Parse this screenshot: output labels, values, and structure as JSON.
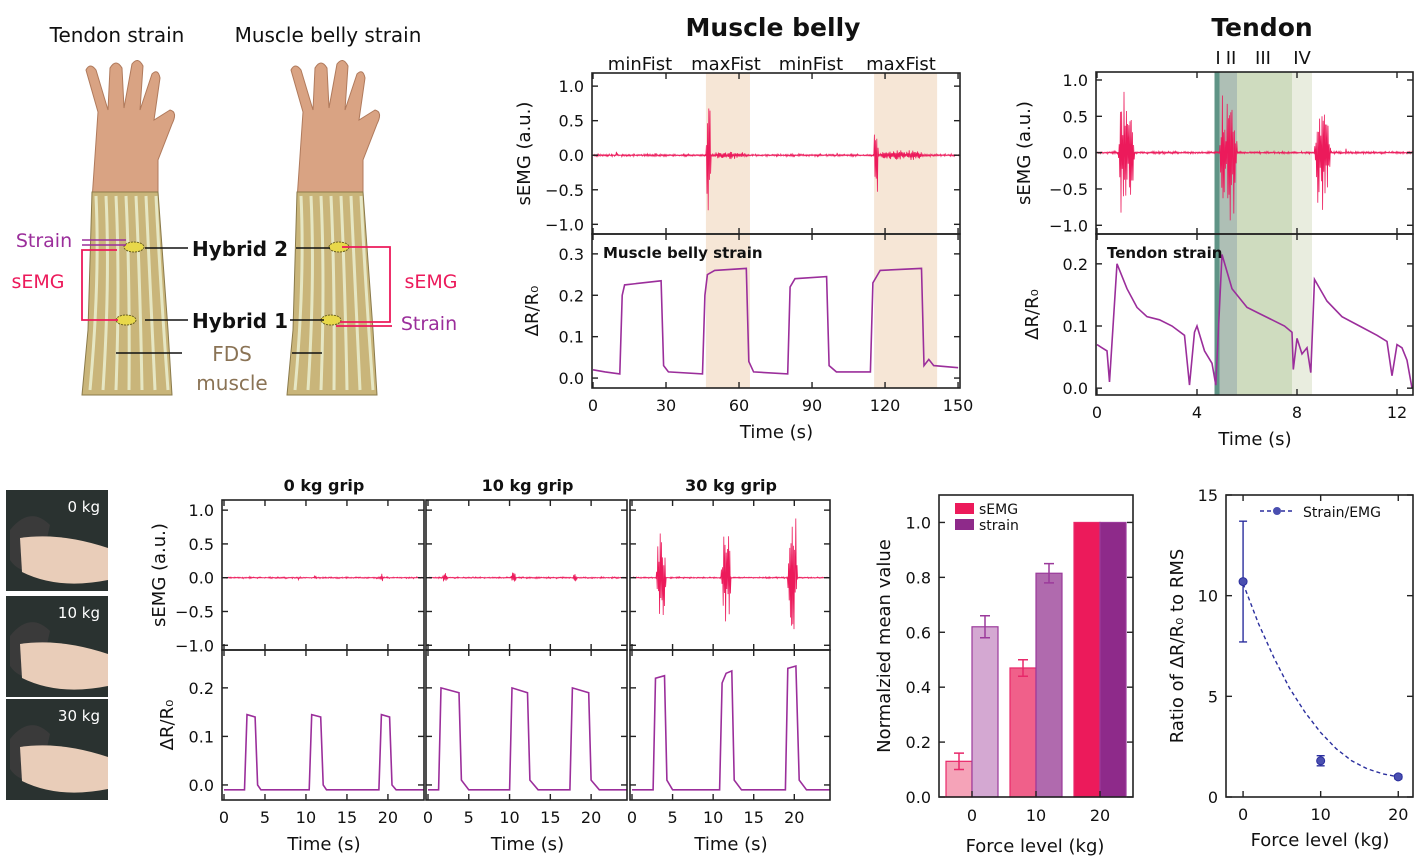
{
  "panel_a": {
    "tendon_title": "Tendon strain",
    "belly_title": "Muscle belly strain",
    "strain_left": "Strain",
    "semg_left": "sEMG",
    "hybrid2": "Hybrid 2",
    "hybrid1": "Hybrid 1",
    "fds_line1": "FDS",
    "fds_line2": "muscle",
    "semg_right": "sEMG",
    "strain_right": "Strain"
  },
  "photos": [
    "0 kg",
    "10 kg",
    "30 kg"
  ],
  "colors": {
    "emg": "#ec1a5b",
    "strain": "#9b2e9b",
    "fit": "#2b2f9e",
    "shade_belly": "#f6e6d6"
  },
  "chart_data": [
    {
      "id": "muscle_belly",
      "type": "line",
      "title": "Muscle belly",
      "phase_labels": [
        "minFist",
        "maxFist",
        "minFist",
        "maxFist"
      ],
      "xlabel": "Time (s)",
      "xlim": [
        0,
        150
      ],
      "xticks": [
        0,
        30,
        60,
        90,
        120,
        150
      ],
      "shaded": [
        [
          46.4,
          64.5
        ],
        [
          115.5,
          141.4
        ]
      ],
      "top": {
        "ylabel": "sEMG (a.u.)",
        "ylim": [
          -1.0,
          1.0
        ],
        "yticks": [
          -1.0,
          -0.5,
          0.0,
          0.5,
          1.0
        ],
        "baseline_noise": 0.015,
        "bursts": [
          [
            46.5,
            48.5,
            1.0
          ],
          [
            48.5,
            64,
            0.06
          ],
          [
            115.5,
            117.2,
            1.0
          ],
          [
            117.2,
            137,
            0.08
          ]
        ]
      },
      "bottom": {
        "ylabel": "ΔR/R₀",
        "label": "Muscle belly strain",
        "ylim": [
          0,
          0.3
        ],
        "yticks": [
          0.0,
          0.1,
          0.2,
          0.3
        ],
        "points": [
          [
            0,
            0.02
          ],
          [
            5,
            0.015
          ],
          [
            11,
            0.01
          ],
          [
            12,
            0.2
          ],
          [
            13,
            0.225
          ],
          [
            28,
            0.235
          ],
          [
            29,
            0.03
          ],
          [
            31,
            0.015
          ],
          [
            45,
            0.01
          ],
          [
            46,
            0.2
          ],
          [
            47,
            0.25
          ],
          [
            50,
            0.26
          ],
          [
            63,
            0.265
          ],
          [
            64,
            0.04
          ],
          [
            66,
            0.015
          ],
          [
            80,
            0.01
          ],
          [
            81,
            0.22
          ],
          [
            83,
            0.24
          ],
          [
            96,
            0.245
          ],
          [
            97,
            0.03
          ],
          [
            100,
            0.015
          ],
          [
            114,
            0.015
          ],
          [
            115,
            0.23
          ],
          [
            118,
            0.26
          ],
          [
            135,
            0.265
          ],
          [
            136,
            0.03
          ],
          [
            138,
            0.045
          ],
          [
            140,
            0.03
          ],
          [
            150,
            0.025
          ]
        ]
      }
    },
    {
      "id": "tendon",
      "type": "line",
      "title": "Tendon",
      "phase_labels": [
        "I",
        "II",
        "III",
        "IV"
      ],
      "xlabel": "Time (s)",
      "xlim": [
        0,
        12.6
      ],
      "xticks": [
        0,
        4,
        8,
        12
      ],
      "shaded": [
        [
          4.7,
          4.9,
          "#5f9486"
        ],
        [
          4.9,
          5.6,
          "#aebfb5"
        ],
        [
          5.6,
          7.8,
          "#cfdcbf"
        ],
        [
          7.8,
          8.6,
          "#e9eddf"
        ]
      ],
      "top": {
        "ylabel": "sEMG (a.u.)",
        "ylim": [
          -1.0,
          1.0
        ],
        "yticks": [
          -1.0,
          -0.5,
          0.0,
          0.5,
          1.0
        ],
        "baseline_noise": 0.015,
        "bursts": [
          [
            0.85,
            1.5,
            1.0
          ],
          [
            4.9,
            5.6,
            1.0
          ],
          [
            8.7,
            9.35,
            1.0
          ]
        ]
      },
      "bottom": {
        "ylabel": "ΔR/R₀",
        "label": "Tendon strain",
        "ylim": [
          0,
          0.2
        ],
        "yticks": [
          0.0,
          0.1,
          0.2
        ],
        "points": [
          [
            0,
            0.07
          ],
          [
            0.2,
            0.065
          ],
          [
            0.4,
            0.06
          ],
          [
            0.5,
            0.01
          ],
          [
            0.8,
            0.2
          ],
          [
            1.2,
            0.16
          ],
          [
            1.6,
            0.13
          ],
          [
            2.0,
            0.115
          ],
          [
            2.5,
            0.11
          ],
          [
            3.0,
            0.1
          ],
          [
            3.5,
            0.085
          ],
          [
            3.7,
            0.005
          ],
          [
            3.9,
            0.09
          ],
          [
            4.0,
            0.1
          ],
          [
            4.3,
            0.06
          ],
          [
            4.6,
            0.04
          ],
          [
            4.75,
            0.005
          ],
          [
            5.0,
            0.215
          ],
          [
            5.4,
            0.16
          ],
          [
            6.0,
            0.13
          ],
          [
            6.5,
            0.12
          ],
          [
            7.0,
            0.11
          ],
          [
            7.5,
            0.1
          ],
          [
            7.8,
            0.09
          ],
          [
            7.85,
            0.03
          ],
          [
            8.0,
            0.08
          ],
          [
            8.2,
            0.055
          ],
          [
            8.4,
            0.065
          ],
          [
            8.55,
            0.025
          ],
          [
            8.7,
            0.175
          ],
          [
            9.2,
            0.14
          ],
          [
            9.8,
            0.115
          ],
          [
            10.5,
            0.1
          ],
          [
            11.2,
            0.085
          ],
          [
            11.6,
            0.075
          ],
          [
            11.8,
            0.02
          ],
          [
            12.0,
            0.07
          ],
          [
            12.2,
            0.065
          ],
          [
            12.4,
            0.045
          ],
          [
            12.6,
            0.0
          ]
        ]
      }
    },
    {
      "id": "grip_0",
      "type": "line",
      "title": "0 kg grip",
      "xlabel": "Time (s)",
      "xlim": [
        0,
        24
      ],
      "xticks": [
        0,
        5,
        10,
        15,
        20
      ],
      "top": {
        "ylabel": "sEMG (a.u.)",
        "ylim": [
          -1.0,
          1.0
        ],
        "yticks": [
          -1.0,
          -0.5,
          0.0,
          0.5,
          1.0
        ],
        "baseline_noise": 0.01,
        "bursts": [
          [
            3,
            3.3,
            0.03
          ],
          [
            11,
            11.3,
            0.03
          ],
          [
            19,
            19.4,
            0.08
          ]
        ]
      },
      "bottom": {
        "ylabel": "ΔR/R₀",
        "ylim": [
          0,
          0.2
        ],
        "yticks": [
          0.0,
          0.1,
          0.2
        ],
        "points": [
          [
            0,
            -0.01
          ],
          [
            2.5,
            -0.01
          ],
          [
            2.8,
            0.145
          ],
          [
            3.8,
            0.14
          ],
          [
            4.1,
            0.0
          ],
          [
            4.5,
            -0.01
          ],
          [
            10.4,
            -0.01
          ],
          [
            10.7,
            0.145
          ],
          [
            11.8,
            0.14
          ],
          [
            12.1,
            0.0
          ],
          [
            12.5,
            -0.01
          ],
          [
            18.9,
            -0.01
          ],
          [
            19.2,
            0.145
          ],
          [
            20.2,
            0.14
          ],
          [
            20.5,
            0.0
          ],
          [
            21,
            -0.01
          ],
          [
            24.4,
            -0.01
          ]
        ]
      }
    },
    {
      "id": "grip_10",
      "type": "line",
      "title": "10 kg grip",
      "xlabel": "Time (s)",
      "xlim": [
        0,
        24
      ],
      "xticks": [
        0,
        5,
        10,
        15,
        20
      ],
      "top": {
        "ylim": [
          -1.0,
          1.0
        ],
        "baseline_noise": 0.01,
        "bursts": [
          [
            1.8,
            2.4,
            0.08
          ],
          [
            10.2,
            10.8,
            0.15
          ],
          [
            17.8,
            18.3,
            0.08
          ]
        ]
      },
      "bottom": {
        "ylim": [
          0,
          0.2
        ],
        "points": [
          [
            0,
            -0.01
          ],
          [
            1.3,
            -0.01
          ],
          [
            1.6,
            0.2
          ],
          [
            3.8,
            0.19
          ],
          [
            4.1,
            0.01
          ],
          [
            5,
            -0.01
          ],
          [
            10.0,
            -0.01
          ],
          [
            10.3,
            0.2
          ],
          [
            12.2,
            0.19
          ],
          [
            12.5,
            0.01
          ],
          [
            13.5,
            -0.01
          ],
          [
            17.4,
            -0.01
          ],
          [
            17.7,
            0.2
          ],
          [
            19.7,
            0.19
          ],
          [
            20,
            0.01
          ],
          [
            21,
            -0.01
          ],
          [
            24.4,
            -0.01
          ]
        ]
      }
    },
    {
      "id": "grip_30",
      "type": "line",
      "title": "30 kg grip",
      "xlabel": "Time (s)",
      "xlim": [
        0,
        24
      ],
      "xticks": [
        0,
        5,
        10,
        15,
        20
      ],
      "top": {
        "ylim": [
          -1.0,
          1.0
        ],
        "baseline_noise": 0.01,
        "bursts": [
          [
            3,
            4.2,
            0.8
          ],
          [
            11,
            12.2,
            0.8
          ],
          [
            19.2,
            20.4,
            1.0
          ]
        ]
      },
      "bottom": {
        "ylim": [
          0,
          0.2
        ],
        "points": [
          [
            0,
            -0.01
          ],
          [
            2.6,
            -0.01
          ],
          [
            2.9,
            0.22
          ],
          [
            4.0,
            0.225
          ],
          [
            4.3,
            0.01
          ],
          [
            5,
            -0.01
          ],
          [
            10.8,
            -0.01
          ],
          [
            11.1,
            0.21
          ],
          [
            11.6,
            0.23
          ],
          [
            12.3,
            0.235
          ],
          [
            12.6,
            0.01
          ],
          [
            13.5,
            -0.01
          ],
          [
            18.9,
            -0.01
          ],
          [
            19.2,
            0.24
          ],
          [
            20.2,
            0.245
          ],
          [
            20.6,
            0.01
          ],
          [
            21.5,
            -0.01
          ],
          [
            24.4,
            -0.01
          ]
        ]
      }
    },
    {
      "id": "normalized_bar",
      "type": "bar",
      "xlabel": "Force level (kg)",
      "ylabel": "Normalzied mean value",
      "categories": [
        "0",
        "10",
        "20"
      ],
      "ylim": [
        0,
        1.1
      ],
      "yticks": [
        0.0,
        0.2,
        0.4,
        0.6,
        0.8,
        1.0
      ],
      "legend": "top-left",
      "series": [
        {
          "name": "sEMG",
          "values": [
            0.13,
            0.47,
            1.0
          ],
          "errors": [
            0.03,
            0.03,
            0
          ],
          "fills": [
            "#f5a3b8",
            "#f0608a",
            "#ec1a5b"
          ],
          "edge": "#e8286a"
        },
        {
          "name": "strain",
          "values": [
            0.62,
            0.815,
            1.0
          ],
          "errors": [
            0.04,
            0.035,
            0
          ],
          "fills": [
            "#d4a8d2",
            "#b06aae",
            "#8e2a8a"
          ],
          "edge": "#9b3a9b"
        }
      ]
    },
    {
      "id": "ratio",
      "type": "scatter",
      "xlabel": "Force level (kg)",
      "ylabel": "Ratio of ΔR/R₀ to RMS",
      "xlim": [
        -5,
        24
      ],
      "xticks": [
        0,
        10,
        20
      ],
      "ylim": [
        0,
        15
      ],
      "yticks": [
        0,
        5,
        10,
        15
      ],
      "legend": "top-right",
      "series": [
        {
          "name": "Strain/EMG",
          "x": [
            0,
            10,
            20
          ],
          "y": [
            10.7,
            1.8,
            1.0
          ],
          "errors": [
            3.0,
            0.25,
            0.1
          ]
        }
      ],
      "fit": {
        "x": [
          0,
          2,
          4,
          6,
          8,
          10,
          12,
          14,
          16,
          18,
          20
        ],
        "y": [
          10.6,
          8.6,
          6.9,
          5.4,
          4.2,
          3.2,
          2.4,
          1.8,
          1.4,
          1.15,
          1.0
        ]
      }
    }
  ]
}
